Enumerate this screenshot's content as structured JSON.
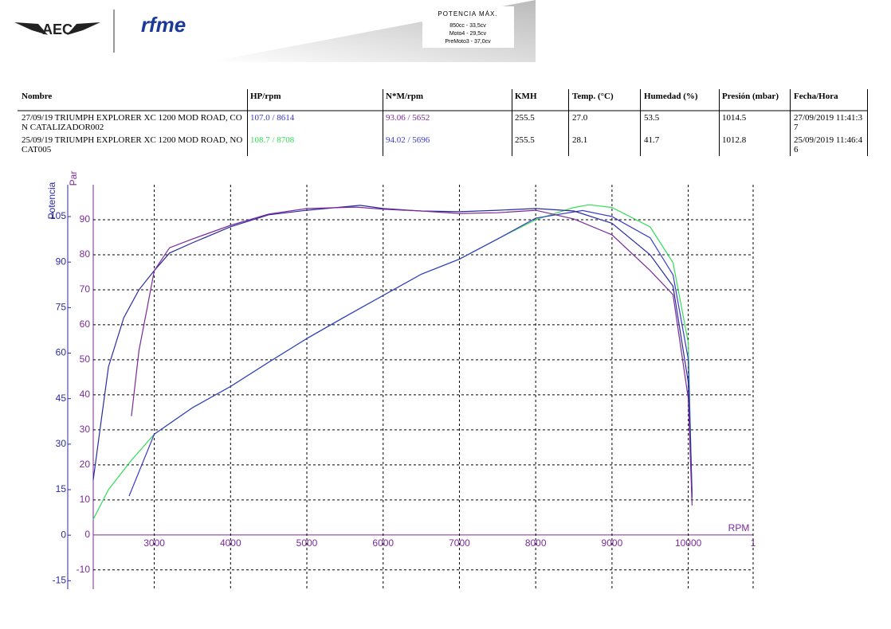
{
  "header": {
    "logo_left": "AEC",
    "logo_right": "rfme",
    "box": {
      "title": "POTENCIA MÁX.",
      "lines": [
        "850cc - 33,5cv",
        "Moto4 - 29,5cv",
        "PreMoto3 - 37,0cv"
      ]
    }
  },
  "table": {
    "columns": [
      "Nombre",
      "HP/rpm",
      "N*M/rpm",
      "KMH",
      "Temp. (°C)",
      "Humedad (%)",
      "Presión (mbar)",
      "Fecha/Hora"
    ],
    "rows": [
      [
        "27/09/19 TRIUMPH EXPLORER XC 1200 MOD ROAD, CON CATALIZADOR002",
        "107.0 / 8614",
        "93.06 / 5652",
        "255.5",
        "27.0",
        "53.5",
        "1014.5",
        "27/09/2019 11:41:37"
      ],
      [
        "25/09/19 TRIUMPH EXPLORER XC 1200 MOD ROAD, NO CAT005",
        "108.7 / 8708",
        "94.02 / 5696",
        "255.5",
        "28.1",
        "41.7",
        "1012.8",
        "25/09/2019 11:46:46"
      ]
    ],
    "row_colors": [
      [
        "#000000",
        "#3a3ac8",
        "#7a2a9a",
        "#000000",
        "#000000",
        "#000000",
        "#000000",
        "#000000"
      ],
      [
        "#000000",
        "#33dd55",
        "#3a3ac8",
        "#000000",
        "#000000",
        "#000000",
        "#000000",
        "#000000"
      ]
    ]
  },
  "chart_data": {
    "type": "line",
    "x_label": "RPM",
    "y_label": "Potencia",
    "y2_label": "Par",
    "xlim": [
      2200,
      10850
    ],
    "xticks": [
      3000,
      4000,
      5000,
      6000,
      7000,
      8000,
      9000,
      10000,
      {
        "value": 10850,
        "label": "1"
      }
    ],
    "ylim": [
      -17.8,
      115.5
    ],
    "yticks": [
      -15,
      0,
      15,
      30,
      45,
      60,
      75,
      90,
      105
    ],
    "y2lim": [
      -15.5,
      100
    ],
    "y2ticks": [
      -10,
      0,
      10,
      20,
      30,
      40,
      50,
      60,
      70,
      80,
      90
    ],
    "grid": true,
    "series": [
      {
        "color": "#33dd55",
        "axis": "y",
        "x": [
          2200,
          2400,
          2700,
          3000,
          3500,
          4000,
          4500,
          5000,
          5500,
          6000,
          6500,
          7000,
          7500,
          8000,
          8500,
          8700,
          9000,
          9500,
          9800,
          10000,
          10050
        ],
        "values": [
          5.2,
          15,
          24.7,
          33.3,
          42,
          49,
          57,
          64.8,
          72,
          79,
          86,
          91,
          97.6,
          104,
          108,
          108.9,
          108,
          101.6,
          89.8,
          63.5,
          11
        ]
      },
      {
        "color": "#3a3ac8",
        "axis": "y",
        "x": [
          2670,
          3000,
          3500,
          4000,
          4500,
          5000,
          5500,
          6000,
          6500,
          7000,
          7500,
          8000,
          8614,
          9000,
          9500,
          9800,
          10000,
          10050
        ],
        "values": [
          12.9,
          33.3,
          42,
          49,
          57,
          64.8,
          72,
          79,
          86,
          91,
          97.6,
          104.5,
          107,
          105,
          98,
          85.8,
          58,
          13.6
        ]
      },
      {
        "color": "#2a2aa0",
        "axis": "y2",
        "x": [
          2200,
          2300,
          2400,
          2600,
          2800,
          3000,
          3200,
          3500,
          4000,
          4500,
          5000,
          5700,
          6000,
          6500,
          7000,
          7500,
          8000,
          8500,
          9000,
          9500,
          9800,
          10000,
          10050
        ],
        "values": [
          15.7,
          32,
          48,
          62,
          70,
          75.5,
          80.5,
          83.4,
          88,
          91.4,
          92.7,
          94.1,
          93.2,
          92.5,
          92.3,
          92.7,
          93.2,
          92.5,
          89,
          80,
          71,
          43.6,
          10.7
        ]
      },
      {
        "color": "#7a2a9a",
        "axis": "y2",
        "x": [
          2700,
          2800,
          2900,
          3000,
          3200,
          3500,
          4000,
          4500,
          5000,
          5650,
          6000,
          6500,
          7000,
          7500,
          8000,
          8500,
          9000,
          9500,
          9800,
          10000,
          10050
        ],
        "values": [
          33.9,
          52.7,
          64,
          75.5,
          82,
          84.5,
          88.4,
          91.6,
          93.2,
          93.6,
          93,
          92.5,
          91.8,
          92,
          92.7,
          90.2,
          85.7,
          75.5,
          68.6,
          39,
          8.4
        ]
      }
    ]
  }
}
